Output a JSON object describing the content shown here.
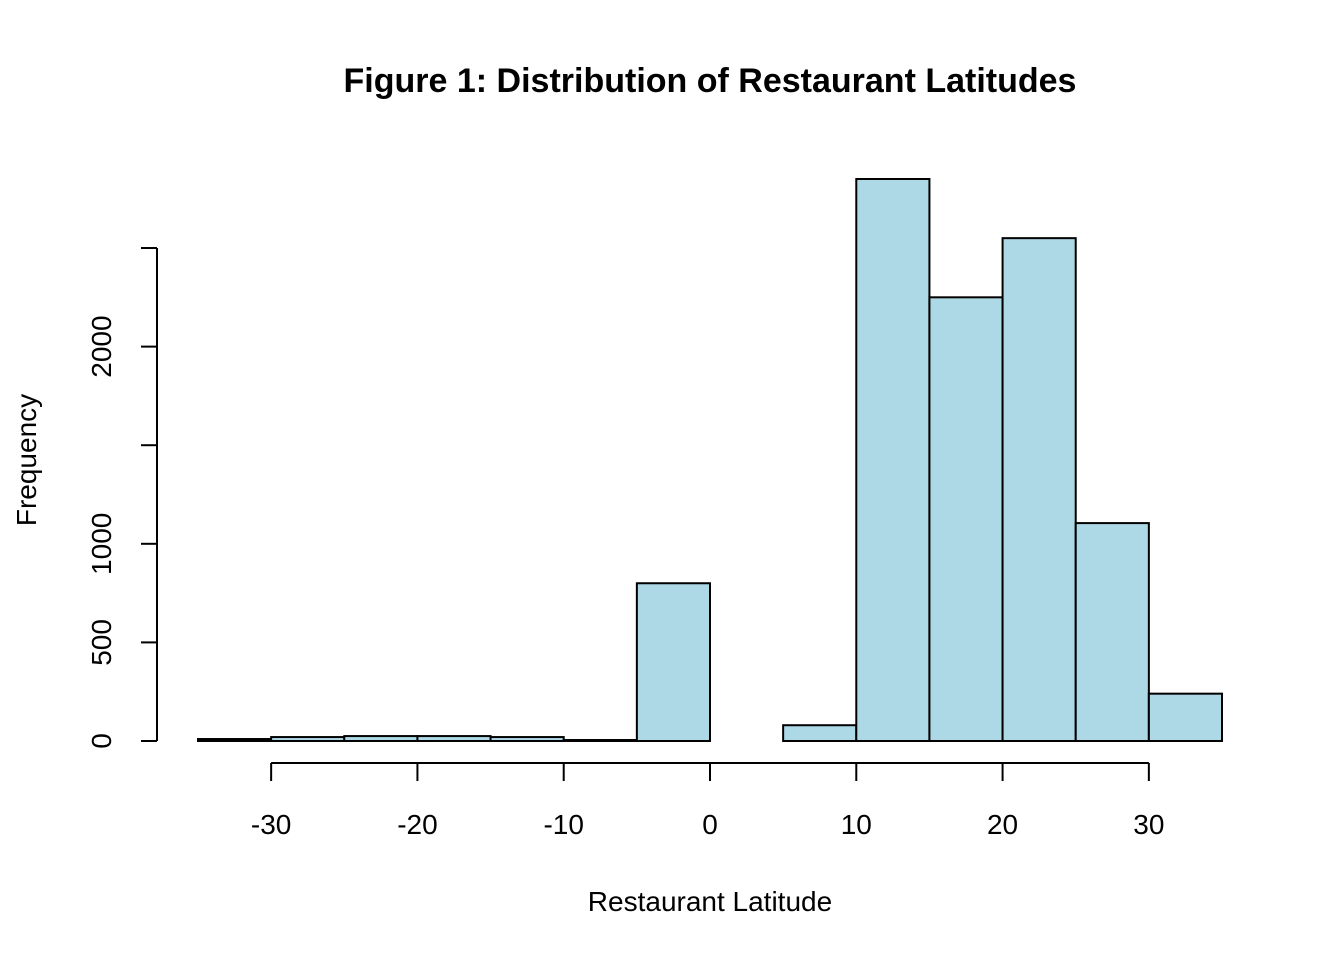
{
  "chart_data": {
    "type": "bar",
    "subtype": "histogram",
    "title": "Figure 1: Distribution of Restaurant Latitudes",
    "xlabel": "Restaurant Latitude",
    "ylabel": "Frequency",
    "bins": [
      {
        "x0": -35,
        "x1": -30,
        "value": 10
      },
      {
        "x0": -30,
        "x1": -25,
        "value": 20
      },
      {
        "x0": -25,
        "x1": -20,
        "value": 25
      },
      {
        "x0": -20,
        "x1": -15,
        "value": 25
      },
      {
        "x0": -15,
        "x1": -10,
        "value": 20
      },
      {
        "x0": -10,
        "x1": -5,
        "value": 5
      },
      {
        "x0": -5,
        "x1": 0,
        "value": 800
      },
      {
        "x0": 0,
        "x1": 5,
        "value": 0
      },
      {
        "x0": 5,
        "x1": 10,
        "value": 80
      },
      {
        "x0": 10,
        "x1": 15,
        "value": 2850
      },
      {
        "x0": 15,
        "x1": 20,
        "value": 2250
      },
      {
        "x0": 20,
        "x1": 25,
        "value": 2550
      },
      {
        "x0": 25,
        "x1": 30,
        "value": 1105
      },
      {
        "x0": 30,
        "x1": 35,
        "value": 240
      }
    ],
    "xlim": [
      -35,
      35
    ],
    "ylim": [
      0,
      2850
    ],
    "x_ticks": [
      -30,
      -20,
      -10,
      0,
      10,
      20,
      30
    ],
    "x_tick_labels": [
      "-30",
      "-20",
      "-10",
      "0",
      "10",
      "20",
      "30"
    ],
    "y_ticks": [
      0,
      500,
      1000,
      1500,
      2000,
      2500
    ],
    "y_tick_labels": [
      "0",
      "500",
      "1000",
      "",
      "2000",
      ""
    ],
    "grid": false,
    "legend": "none",
    "bar_color": "#add8e6",
    "edge_color": "#000000"
  }
}
